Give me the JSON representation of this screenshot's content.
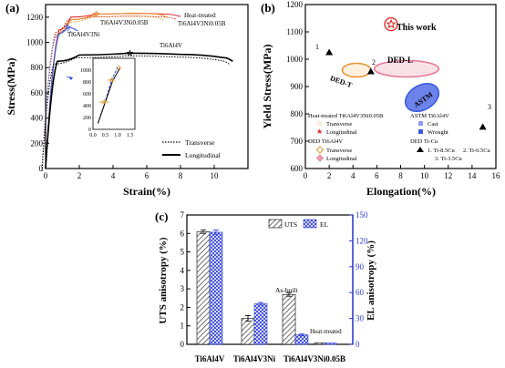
{
  "chart_data": [
    {
      "panel": "(a)",
      "type": "line",
      "xlabel": "Strain(%)",
      "ylabel": "Stress(MPa)",
      "xlim": [
        0,
        12
      ],
      "ylim": [
        0,
        1300
      ],
      "xticks": [
        0,
        2,
        4,
        6,
        8,
        10
      ],
      "yticks": [
        0,
        200,
        400,
        600,
        800,
        1000,
        1200
      ],
      "annotations": [
        "Heat-treated",
        "Ti6Al4V3Ni0.05B",
        "Ti6Al4V3Ni0.05B",
        "Ti6Al4V3Ni",
        "Ti6Al4V"
      ],
      "legend": [
        {
          "label": "Transverse",
          "style": "dotted"
        },
        {
          "label": "Longitudinal",
          "style": "solid"
        }
      ],
      "series": [
        {
          "name": "Heat-treated Ti6Al4V3Ni0.05B",
          "color": "#e02020",
          "x": [
            0,
            0.8,
            1.5,
            3,
            5,
            7,
            8.0
          ],
          "y": [
            0,
            1100,
            1200,
            1225,
            1230,
            1225,
            1205
          ]
        },
        {
          "name": "Ti6Al4V3Ni0.05B",
          "color": "#e69532",
          "x": [
            0,
            0.8,
            1.5,
            3,
            5,
            6.5,
            7.2
          ],
          "y": [
            0,
            1080,
            1180,
            1225,
            1230,
            1225,
            1200
          ]
        },
        {
          "name": "Ti6Al4V3Ni",
          "color": "#3a5ae0",
          "x": [
            0,
            0.8,
            1.3,
            1.9
          ],
          "y": [
            0,
            1070,
            1120,
            1090
          ]
        },
        {
          "name": "Ti6Al4V",
          "color": "#000000",
          "x": [
            0,
            0.7,
            2,
            5,
            8,
            10.5,
            11.1
          ],
          "y": [
            0,
            850,
            900,
            915,
            905,
            880,
            850
          ]
        }
      ],
      "inset": {
        "xlim": [
          0,
          1.7
        ],
        "ylim": [
          0,
          1200
        ],
        "xticks": [
          0.0,
          0.5,
          1.0,
          1.5
        ],
        "yticks": [
          0,
          200,
          400,
          600,
          800,
          1000
        ],
        "series": [
          {
            "color": "#2a4be0",
            "x": [
              0.2,
              0.5,
              0.75,
              1.0
            ],
            "y": [
              100,
              470,
              830,
              1050
            ]
          },
          {
            "color": "#000000",
            "x": [
              0.2,
              0.5,
              0.8,
              1.1
            ],
            "y": [
              100,
              460,
              820,
              1040
            ]
          }
        ]
      }
    },
    {
      "panel": "(b)",
      "type": "scatter",
      "xlabel": "Elongation(%)",
      "ylabel": "Yield Stress(MPa)",
      "xlim": [
        0,
        16
      ],
      "ylim": [
        600,
        1200
      ],
      "xticks": [
        0,
        2,
        4,
        6,
        8,
        10,
        12,
        14,
        16
      ],
      "yticks": [
        600,
        700,
        800,
        900,
        1000,
        1100,
        1200
      ],
      "annotations": [
        "This work",
        "DED-L",
        "DED-T",
        "ASTM",
        "1",
        "2",
        "3"
      ],
      "points": [
        {
          "label": "1",
          "x": 2.0,
          "y": 1025,
          "marker": "triangle",
          "color": "#000000"
        },
        {
          "label": "2",
          "x": 5.5,
          "y": 955,
          "marker": "triangle",
          "color": "#000000"
        },
        {
          "label": "3",
          "x": 14.9,
          "y": 752,
          "marker": "triangle",
          "color": "#000000"
        },
        {
          "label": "This work",
          "x": 7.2,
          "y": 1128,
          "marker": "star",
          "color": "#e02020"
        }
      ],
      "regions": [
        {
          "label": "DED-L",
          "cx": 8.5,
          "cy": 965,
          "rx": 2.7,
          "ry": 30,
          "angle": 0,
          "color": "#e57890"
        },
        {
          "label": "DED-T",
          "cx": 4.3,
          "cy": 960,
          "rx": 1.2,
          "ry": 25,
          "angle": 0,
          "color": "#e69532"
        },
        {
          "label": "ASTM",
          "cx": 9.8,
          "cy": 860,
          "rx": 1.5,
          "ry": 45,
          "angle": -30,
          "color": "#3a5ae0"
        }
      ],
      "legend": {
        "group1_title": "Heat-treated Ti6Al4V3Ni0.05B",
        "group1": [
          "Transverse",
          "Longitudinal"
        ],
        "group2_title": "DED Ti6Al4V",
        "group2": [
          "Transverse",
          "Longitudinal"
        ],
        "group3_title": "ASTM Ti6Al4V",
        "group3": [
          "Cast",
          "Wrought"
        ],
        "group4_title": "DED Ti-Cu",
        "group4": [
          "1. Ti-8.5Cu",
          "2. Ti-6.5Cu",
          "3. Ti-3.5Cu"
        ]
      }
    },
    {
      "panel": "(c)",
      "type": "bar",
      "categories": [
        "Ti6Al4V",
        "Ti6Al4V3Ni",
        "Ti6Al4V3Ni0.05B"
      ],
      "ylabel": "UTS anisotropy (%)",
      "ylabel2": "EL anisotropy (%)",
      "ylim": [
        0,
        7
      ],
      "ylim2": [
        0,
        150
      ],
      "yticks": [
        0,
        1,
        2,
        3,
        4,
        5,
        6,
        7
      ],
      "yticks2": [
        0,
        30,
        60,
        90,
        120,
        150
      ],
      "legend": [
        "UTS",
        "EL"
      ],
      "annotations": [
        "As-built",
        "Heat-treated"
      ],
      "series": [
        {
          "name": "UTS",
          "axis": "left",
          "values": [
            6.1,
            1.4,
            2.7
          ],
          "errors": [
            0.1,
            0.15,
            0.1
          ]
        },
        {
          "name": "EL",
          "axis": "right",
          "values": [
            130,
            47,
            11
          ],
          "errors": [
            2.5,
            1.5,
            1
          ]
        }
      ],
      "extra_bars": [
        {
          "category": "Ti6Al4V3Ni0.05B",
          "label": "Heat-treated",
          "uts": 0.08,
          "el": 1.5
        }
      ]
    }
  ]
}
